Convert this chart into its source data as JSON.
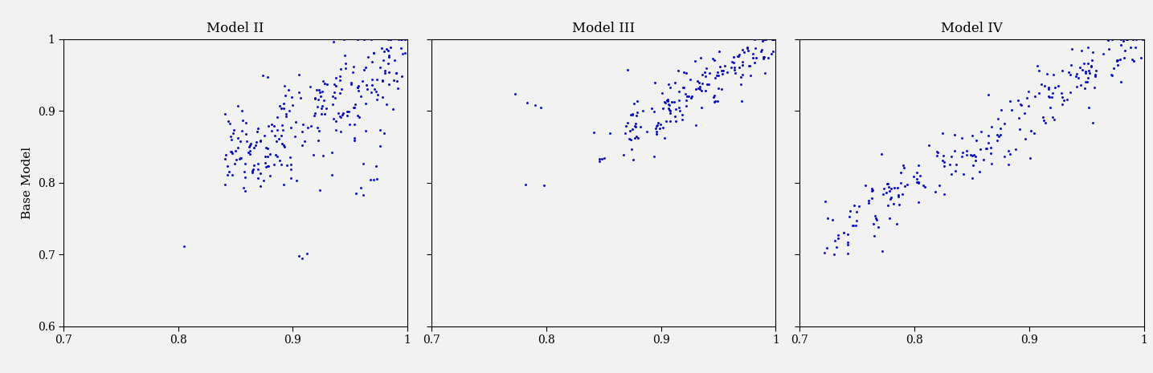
{
  "titles": [
    "Model II",
    "Model III",
    "Model IV"
  ],
  "ylabel": "Base Model",
  "xlim": [
    0.7,
    1.0
  ],
  "ylim": [
    0.6,
    1.0
  ],
  "xticks": [
    0.7,
    0.8,
    0.9,
    1.0
  ],
  "yticks": [
    0.6,
    0.7,
    0.8,
    0.9,
    1.0
  ],
  "xtick_labels": [
    "0.7",
    "0.8",
    "0.9",
    "1"
  ],
  "ytick_labels": [
    "0.6",
    "0.7",
    "0.8",
    "0.9",
    "1"
  ],
  "dot_color": "#0000CD",
  "dot_size": 18,
  "bg_color": "#f2f2f2",
  "fig_bg": "#f2f2f2"
}
